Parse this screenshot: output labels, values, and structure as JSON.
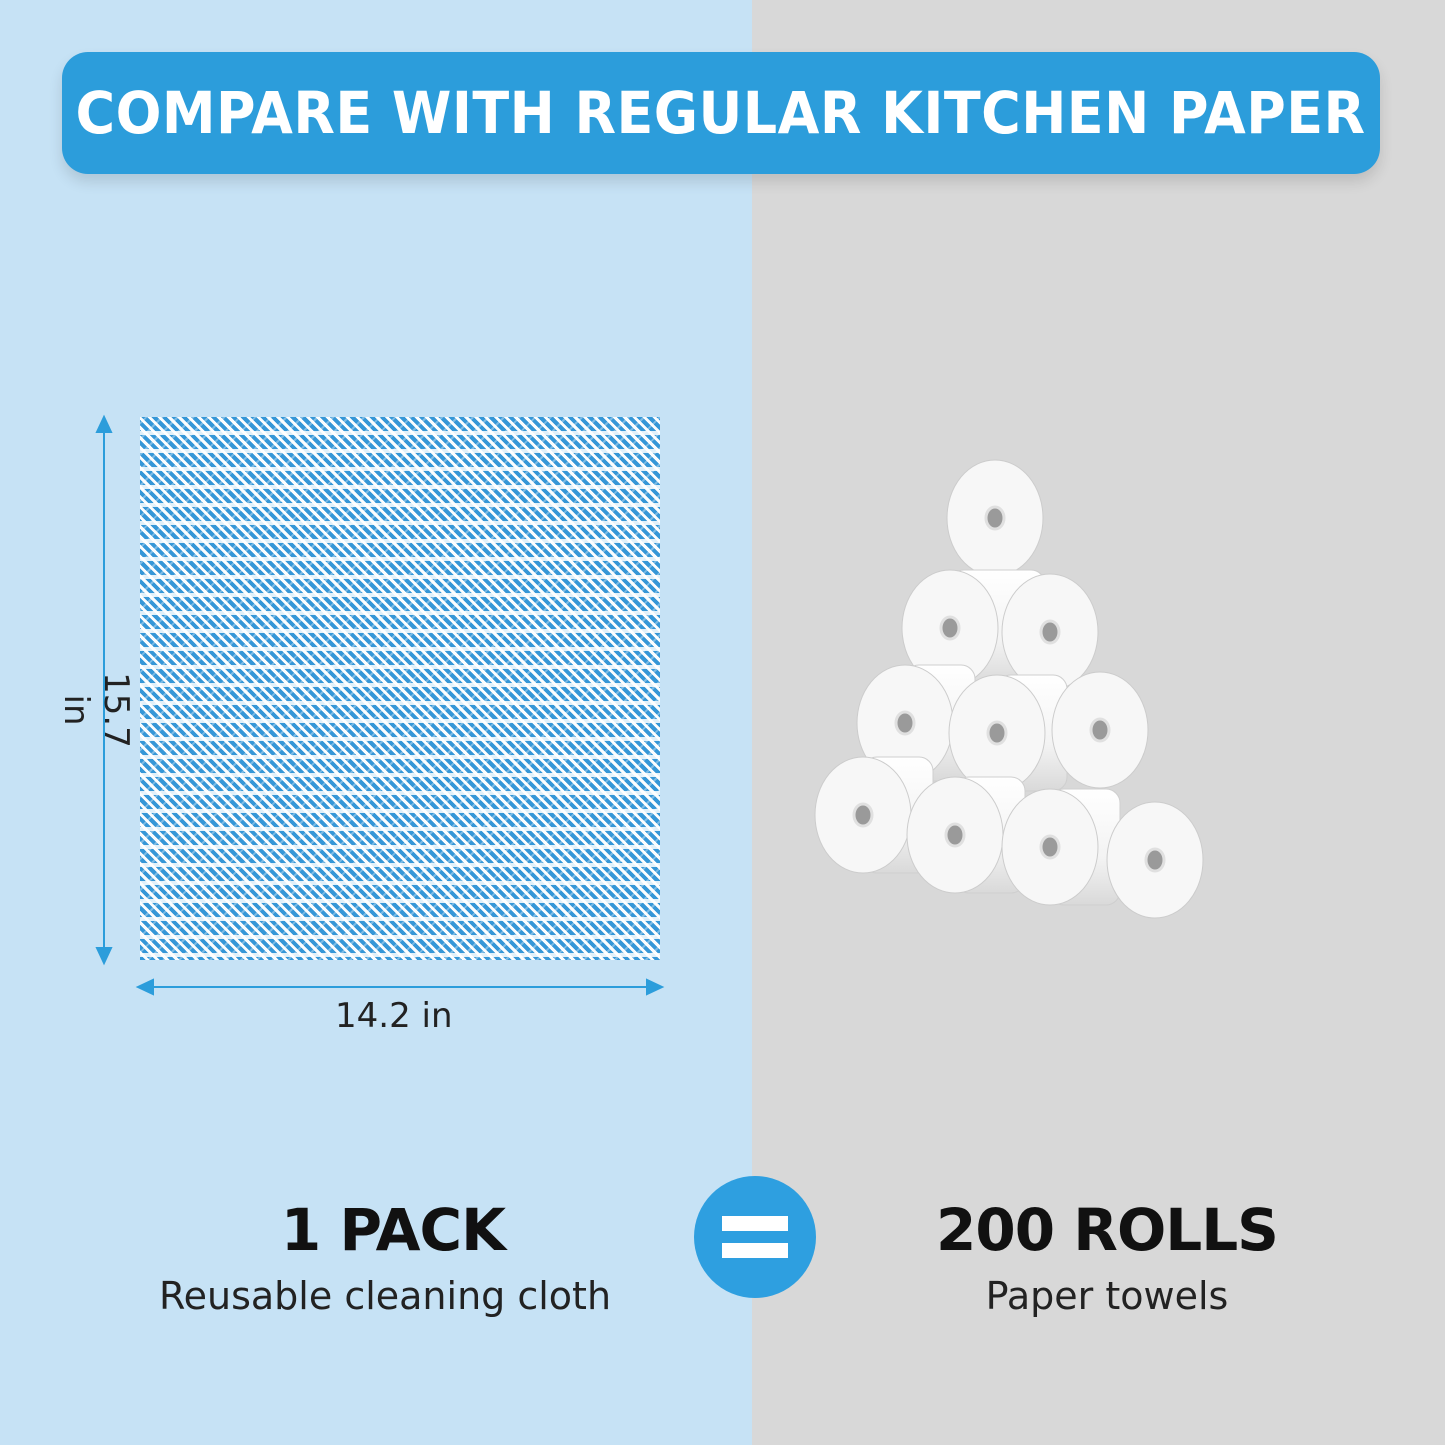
{
  "banner": {
    "title": "COMPARE WITH REGULAR KITCHEN PAPER"
  },
  "cloth": {
    "width_label": "14.2 in",
    "height_label": "15.7 in"
  },
  "left": {
    "quantity": "1 PACK",
    "description": "Reusable cleaning cloth"
  },
  "right": {
    "quantity": "200 ROLLS",
    "description": "Paper towels"
  },
  "equals_icon": "equals-sign",
  "colors": {
    "accent": "#2c9ddb",
    "left_bg": "#c6e2f5",
    "right_bg": "#d8d8d8"
  }
}
